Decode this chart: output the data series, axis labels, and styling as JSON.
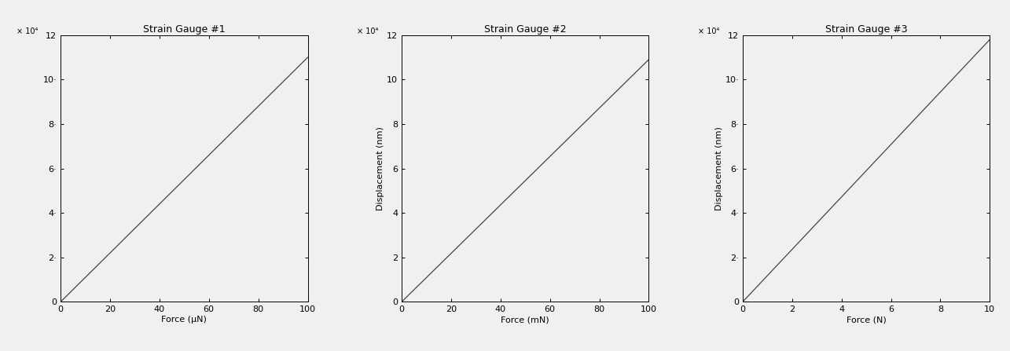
{
  "subplots": [
    {
      "title": "Strain Gauge #1",
      "xlabel": "Force (μN)",
      "ylabel": "",
      "xlim": [
        0,
        100
      ],
      "ylim": [
        0,
        120000
      ],
      "xticks": [
        0,
        20,
        40,
        60,
        80,
        100
      ],
      "yticks": [
        0,
        20000,
        40000,
        60000,
        80000,
        100000,
        120000
      ],
      "ytick_labels": [
        "0",
        "2·",
        "4·",
        "6·",
        "8·",
        "10·",
        "12"
      ],
      "x_data": [
        0,
        100
      ],
      "y_data": [
        0,
        110000
      ],
      "has_dotted_vline": false,
      "vline_x": null
    },
    {
      "title": "Strain Gauge #2",
      "xlabel": "Force (mN)",
      "ylabel": "Displacement (nm)",
      "xlim": [
        0,
        100
      ],
      "ylim": [
        0,
        120000
      ],
      "xticks": [
        0,
        20,
        40,
        60,
        80,
        100
      ],
      "yticks": [
        0,
        20000,
        40000,
        60000,
        80000,
        100000,
        120000
      ],
      "ytick_labels": [
        "0",
        "2",
        "4",
        "6",
        "8",
        "10",
        "12"
      ],
      "x_data": [
        0,
        100
      ],
      "y_data": [
        0,
        109000
      ],
      "has_dotted_vline": true,
      "vline_x": 100
    },
    {
      "title": "Strain Gauge #3",
      "xlabel": "Force (N)",
      "ylabel": "Displacement (nm)",
      "xlim": [
        0,
        10
      ],
      "ylim": [
        0,
        120000
      ],
      "xticks": [
        0,
        2,
        4,
        6,
        8,
        10
      ],
      "yticks": [
        0,
        20000,
        40000,
        60000,
        80000,
        100000,
        120000
      ],
      "ytick_labels": [
        "0",
        "2·",
        "4·",
        "6·",
        "8·",
        "10·",
        "12"
      ],
      "x_data": [
        0,
        10
      ],
      "y_data": [
        0,
        118000
      ],
      "has_dotted_vline": false,
      "vline_x": null
    }
  ],
  "exponent_label": "× 10⁴",
  "line_color": "#444444",
  "line_width": 0.9,
  "background_color": "#f0f0f0",
  "title_fontsize": 9,
  "label_fontsize": 8,
  "tick_fontsize": 8
}
